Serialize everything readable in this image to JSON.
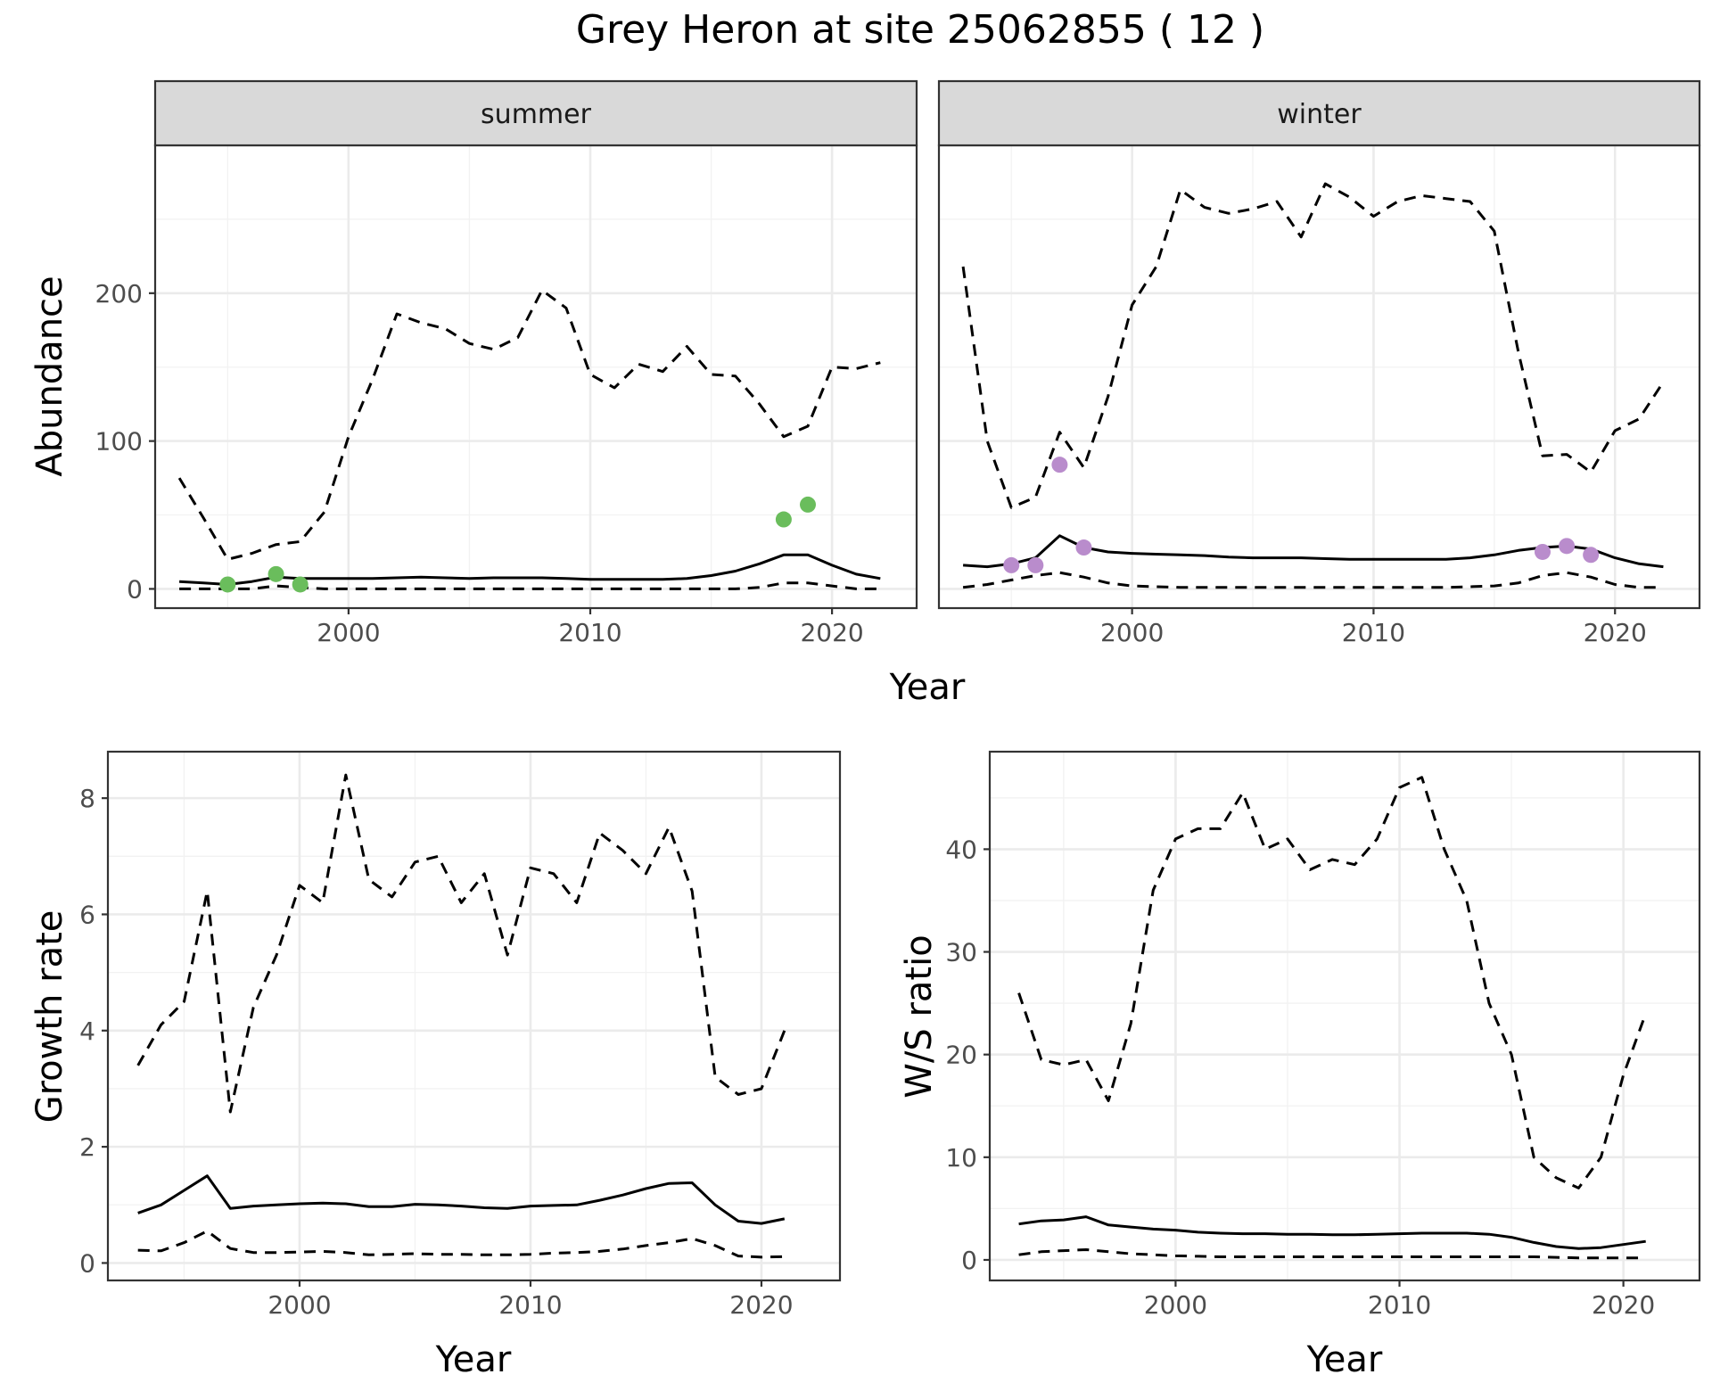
{
  "title": "Grey Heron at site 25062855 ( 12 )",
  "colors": {
    "summer_points": "#6abd5c",
    "winter_points": "#b98ccc",
    "lines": "#000000"
  },
  "chart_data": [
    {
      "type": "line",
      "panel": "summer",
      "strip_label": "summer",
      "xlabel": "Year",
      "ylabel": "Abundance",
      "xlim": [
        1992,
        2023.5
      ],
      "ylim": [
        -13,
        300
      ],
      "x_ticks": [
        2000,
        2010,
        2020
      ],
      "y_ticks": [
        0,
        100,
        200
      ],
      "grid": true,
      "series": [
        {
          "style": "solid",
          "x": [
            1993,
            1994,
            1995,
            1996,
            1997,
            1998,
            1999,
            2000,
            2001,
            2002,
            2003,
            2004,
            2005,
            2006,
            2007,
            2008,
            2009,
            2010,
            2011,
            2012,
            2013,
            2014,
            2015,
            2016,
            2017,
            2018,
            2019,
            2020,
            2021,
            2022
          ],
          "values": [
            5,
            4,
            3,
            5,
            8,
            7,
            7,
            7,
            7,
            7.5,
            8,
            7.5,
            7,
            7.5,
            7.5,
            7.5,
            7,
            6.5,
            6.5,
            6.5,
            6.5,
            7,
            9,
            12,
            17,
            23,
            23,
            16,
            10,
            7
          ]
        },
        {
          "style": "dashed",
          "x": [
            1993,
            1994,
            1995,
            1996,
            1997,
            1998,
            1999,
            2000,
            2001,
            2002,
            2003,
            2004,
            2005,
            2006,
            2007,
            2008,
            2009,
            2010,
            2011,
            2012,
            2013,
            2014,
            2015,
            2016,
            2017,
            2018,
            2019,
            2020,
            2021,
            2022
          ],
          "values": [
            75,
            48,
            20,
            24,
            30,
            32,
            52,
            103,
            142,
            186,
            180,
            176,
            166,
            162,
            170,
            202,
            190,
            145,
            136,
            152,
            147,
            164,
            145,
            144,
            125,
            103,
            110,
            150,
            149,
            153
          ]
        },
        {
          "style": "dashed",
          "x": [
            1993,
            1994,
            1995,
            1996,
            1997,
            1998,
            1999,
            2000,
            2001,
            2002,
            2003,
            2004,
            2005,
            2006,
            2007,
            2008,
            2009,
            2010,
            2011,
            2012,
            2013,
            2014,
            2015,
            2016,
            2017,
            2018,
            2019,
            2020,
            2021,
            2022
          ],
          "values": [
            0,
            0,
            0,
            0,
            2,
            1,
            0,
            0,
            0,
            0,
            0,
            0,
            0,
            0,
            0,
            0,
            0,
            0,
            0,
            0,
            0,
            0,
            0,
            0,
            1,
            4,
            4,
            2,
            0,
            0
          ]
        }
      ],
      "points": {
        "x": [
          1995,
          1997,
          1998,
          2018,
          2019
        ],
        "values": [
          3,
          10,
          3,
          47,
          57
        ]
      }
    },
    {
      "type": "line",
      "panel": "winter",
      "strip_label": "winter",
      "xlabel": "Year",
      "ylabel": "",
      "xlim": [
        1992,
        2023.5
      ],
      "ylim": [
        -13,
        300
      ],
      "x_ticks": [
        2000,
        2010,
        2020
      ],
      "y_ticks": [],
      "grid": true,
      "series": [
        {
          "style": "solid",
          "x": [
            1993,
            1994,
            1995,
            1996,
            1997,
            1998,
            1999,
            2000,
            2001,
            2002,
            2003,
            2004,
            2005,
            2006,
            2007,
            2008,
            2009,
            2010,
            2011,
            2012,
            2013,
            2014,
            2015,
            2016,
            2017,
            2018,
            2019,
            2020,
            2021,
            2022
          ],
          "values": [
            16,
            15,
            17,
            21,
            36,
            28,
            25,
            24,
            23.5,
            23,
            22.5,
            21.5,
            21,
            21,
            21,
            20.5,
            20,
            20,
            20,
            20,
            20,
            21,
            23,
            26,
            28,
            29,
            27,
            21,
            17,
            15
          ]
        },
        {
          "style": "dashed",
          "x": [
            1993,
            1994,
            1995,
            1996,
            1997,
            1998,
            1999,
            2000,
            2001,
            2002,
            2003,
            2004,
            2005,
            2006,
            2007,
            2008,
            2009,
            2010,
            2011,
            2012,
            2013,
            2014,
            2015,
            2016,
            2017,
            2018,
            2019,
            2020,
            2021,
            2022
          ],
          "values": [
            218,
            100,
            55,
            62,
            106,
            82,
            130,
            192,
            218,
            270,
            258,
            254,
            257,
            262,
            238,
            274,
            265,
            252,
            262,
            266,
            264,
            262,
            242,
            160,
            90,
            91,
            79,
            107,
            115,
            140
          ]
        },
        {
          "style": "dashed",
          "x": [
            1993,
            1994,
            1995,
            1996,
            1997,
            1998,
            1999,
            2000,
            2001,
            2002,
            2003,
            2004,
            2005,
            2006,
            2007,
            2008,
            2009,
            2010,
            2011,
            2012,
            2013,
            2014,
            2015,
            2016,
            2017,
            2018,
            2019,
            2020,
            2021,
            2022
          ],
          "values": [
            1,
            3,
            6,
            9,
            11,
            8,
            4,
            2,
            1.5,
            1,
            1,
            1,
            1,
            1,
            1,
            1,
            1,
            1,
            1,
            1,
            1,
            1.5,
            2,
            4,
            9,
            11,
            8,
            3,
            1,
            1
          ]
        }
      ],
      "points": {
        "x": [
          1995,
          1996,
          1997,
          1998,
          2017,
          2018,
          2019
        ],
        "values": [
          16,
          16,
          84,
          28,
          25,
          29,
          23
        ]
      }
    },
    {
      "type": "line",
      "panel": "growth",
      "xlabel": "Year",
      "ylabel": "Growth rate",
      "xlim": [
        1991.7,
        2023.4
      ],
      "ylim": [
        -0.3,
        8.8
      ],
      "x_ticks": [
        2000,
        2010,
        2020
      ],
      "y_ticks": [
        0,
        2,
        4,
        6,
        8
      ],
      "grid": true,
      "series": [
        {
          "style": "solid",
          "x": [
            1993,
            1994,
            1995,
            1996,
            1997,
            1998,
            1999,
            2000,
            2001,
            2002,
            2003,
            2004,
            2005,
            2006,
            2007,
            2008,
            2009,
            2010,
            2011,
            2012,
            2013,
            2014,
            2015,
            2016,
            2017,
            2018,
            2019,
            2020,
            2021
          ],
          "values": [
            0.86,
            1.0,
            1.25,
            1.5,
            0.94,
            0.98,
            1.0,
            1.02,
            1.03,
            1.02,
            0.97,
            0.97,
            1.01,
            1.0,
            0.98,
            0.95,
            0.94,
            0.98,
            0.99,
            1.0,
            1.08,
            1.17,
            1.28,
            1.37,
            1.38,
            1.0,
            0.72,
            0.68,
            0.76
          ]
        },
        {
          "style": "dashed",
          "x": [
            1993,
            1994,
            1995,
            1996,
            1997,
            1998,
            1999,
            2000,
            2001,
            2002,
            2003,
            2004,
            2005,
            2006,
            2007,
            2008,
            2009,
            2010,
            2011,
            2012,
            2013,
            2014,
            2015,
            2016,
            2017,
            2018,
            2019,
            2020,
            2021
          ],
          "values": [
            3.4,
            4.1,
            4.5,
            6.4,
            2.6,
            4.4,
            5.3,
            6.5,
            6.2,
            8.4,
            6.6,
            6.3,
            6.9,
            7.0,
            6.2,
            6.7,
            5.3,
            6.8,
            6.7,
            6.2,
            7.4,
            7.1,
            6.7,
            7.5,
            6.4,
            3.2,
            2.9,
            3.0,
            4.0
          ]
        },
        {
          "style": "dashed",
          "x": [
            1993,
            1994,
            1995,
            1996,
            1997,
            1998,
            1999,
            2000,
            2001,
            2002,
            2003,
            2004,
            2005,
            2006,
            2007,
            2008,
            2009,
            2010,
            2011,
            2012,
            2013,
            2014,
            2015,
            2016,
            2017,
            2018,
            2019,
            2020,
            2021
          ],
          "values": [
            0.22,
            0.21,
            0.35,
            0.55,
            0.25,
            0.18,
            0.18,
            0.19,
            0.2,
            0.18,
            0.14,
            0.15,
            0.16,
            0.15,
            0.15,
            0.14,
            0.14,
            0.15,
            0.17,
            0.18,
            0.2,
            0.24,
            0.3,
            0.35,
            0.42,
            0.3,
            0.12,
            0.1,
            0.11
          ]
        }
      ]
    },
    {
      "type": "line",
      "panel": "ratio",
      "xlabel": "Year",
      "ylabel": "W/S ratio",
      "xlim": [
        1991.7,
        2023.4
      ],
      "ylim": [
        -2,
        49.5
      ],
      "x_ticks": [
        2000,
        2010,
        2020
      ],
      "y_ticks": [
        0,
        10,
        20,
        30,
        40
      ],
      "grid": true,
      "series": [
        {
          "style": "solid",
          "x": [
            1993,
            1994,
            1995,
            1996,
            1997,
            1998,
            1999,
            2000,
            2001,
            2002,
            2003,
            2004,
            2005,
            2006,
            2007,
            2008,
            2009,
            2010,
            2011,
            2012,
            2013,
            2014,
            2015,
            2016,
            2017,
            2018,
            2019,
            2020,
            2021
          ],
          "values": [
            3.5,
            3.8,
            3.9,
            4.2,
            3.4,
            3.2,
            3.0,
            2.9,
            2.7,
            2.6,
            2.55,
            2.55,
            2.5,
            2.5,
            2.45,
            2.45,
            2.5,
            2.55,
            2.6,
            2.6,
            2.6,
            2.5,
            2.2,
            1.7,
            1.3,
            1.1,
            1.2,
            1.5,
            1.8
          ]
        },
        {
          "style": "dashed",
          "x": [
            1993,
            1994,
            1995,
            1996,
            1997,
            1998,
            1999,
            2000,
            2001,
            2002,
            2003,
            2004,
            2005,
            2006,
            2007,
            2008,
            2009,
            2010,
            2011,
            2012,
            2013,
            2014,
            2015,
            2016,
            2017,
            2018,
            2019,
            2020,
            2021
          ],
          "values": [
            26,
            19.5,
            19,
            19.5,
            15.5,
            23,
            36,
            41,
            42,
            42,
            45.5,
            40,
            41,
            38,
            39,
            38.5,
            41,
            46,
            47,
            40,
            35,
            25,
            20,
            10,
            8,
            7,
            10,
            18,
            24
          ]
        },
        {
          "style": "dashed",
          "x": [
            1993,
            1994,
            1995,
            1996,
            1997,
            1998,
            1999,
            2000,
            2001,
            2002,
            2003,
            2004,
            2005,
            2006,
            2007,
            2008,
            2009,
            2010,
            2011,
            2012,
            2013,
            2014,
            2015,
            2016,
            2017,
            2018,
            2019,
            2020,
            2021
          ],
          "values": [
            0.5,
            0.8,
            0.9,
            1.0,
            0.8,
            0.6,
            0.5,
            0.4,
            0.35,
            0.3,
            0.3,
            0.3,
            0.3,
            0.3,
            0.3,
            0.3,
            0.3,
            0.3,
            0.3,
            0.3,
            0.3,
            0.3,
            0.3,
            0.3,
            0.25,
            0.2,
            0.2,
            0.2,
            0.2
          ]
        }
      ]
    }
  ]
}
